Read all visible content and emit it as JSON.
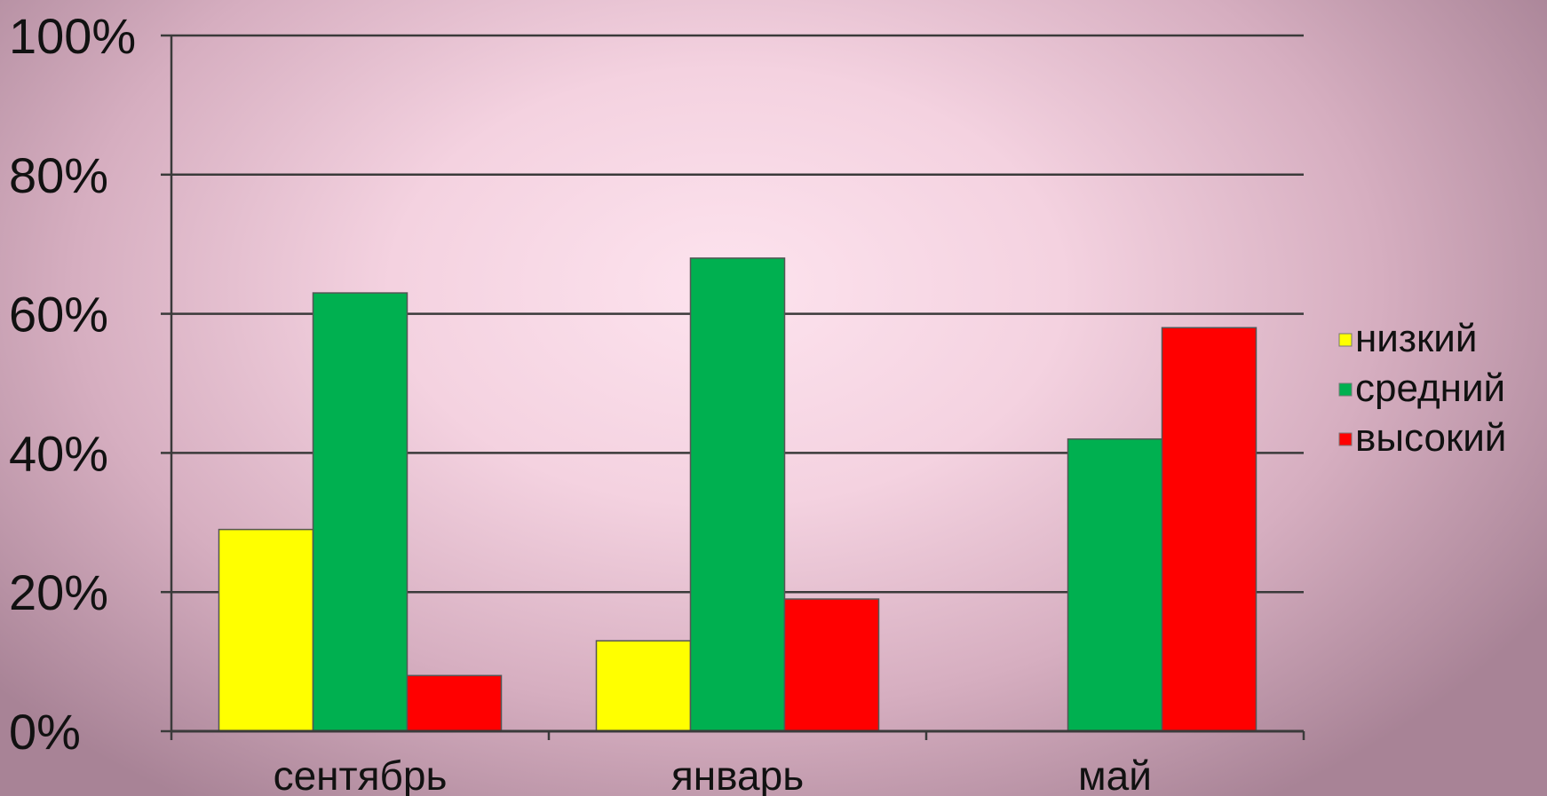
{
  "chart_data": {
    "type": "bar",
    "categories": [
      "сентябрь",
      "январь",
      "май"
    ],
    "series": [
      {
        "name": "низкий",
        "color": "#ffff00",
        "values": [
          29,
          13,
          0
        ]
      },
      {
        "name": "средний",
        "color": "#00b050",
        "values": [
          63,
          68,
          42
        ]
      },
      {
        "name": "высокий",
        "color": "#ff0000",
        "values": [
          8,
          19,
          58
        ]
      }
    ],
    "ylim": [
      0,
      100
    ],
    "yticks": [
      0,
      20,
      40,
      60,
      80,
      100
    ],
    "ytick_suffix": "%",
    "grid": true,
    "legend_position": "right"
  }
}
